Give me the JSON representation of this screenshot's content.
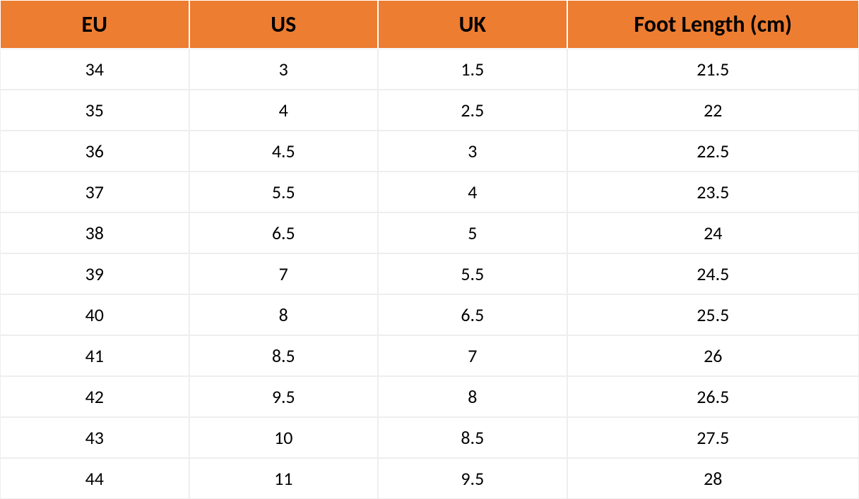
{
  "table": {
    "type": "table",
    "header_bg": "#ed7d31",
    "header_text_color": "#000000",
    "header_fontsize": 32,
    "header_fontweight": 700,
    "cell_fontsize": 26,
    "cell_fontweight": 400,
    "cell_bg": "#ffffff",
    "cell_text_color": "#000000",
    "grid_color": "#eeeeee",
    "header_border_color": "#ffffff",
    "column_widths_pct": [
      22,
      22,
      22,
      34
    ],
    "columns": [
      "EU",
      "US",
      "UK",
      "Foot Length (cm)"
    ],
    "rows": [
      [
        "34",
        "3",
        "1.5",
        "21.5"
      ],
      [
        "35",
        "4",
        "2.5",
        "22"
      ],
      [
        "36",
        "4.5",
        "3",
        "22.5"
      ],
      [
        "37",
        "5.5",
        "4",
        "23.5"
      ],
      [
        "38",
        "6.5",
        "5",
        "24"
      ],
      [
        "39",
        "7",
        "5.5",
        "24.5"
      ],
      [
        "40",
        "8",
        "6.5",
        "25.5"
      ],
      [
        "41",
        "8.5",
        "7",
        "26"
      ],
      [
        "42",
        "9.5",
        "8",
        "26.5"
      ],
      [
        "43",
        "10",
        "8.5",
        "27.5"
      ],
      [
        "44",
        "11",
        "9.5",
        "28"
      ]
    ]
  }
}
